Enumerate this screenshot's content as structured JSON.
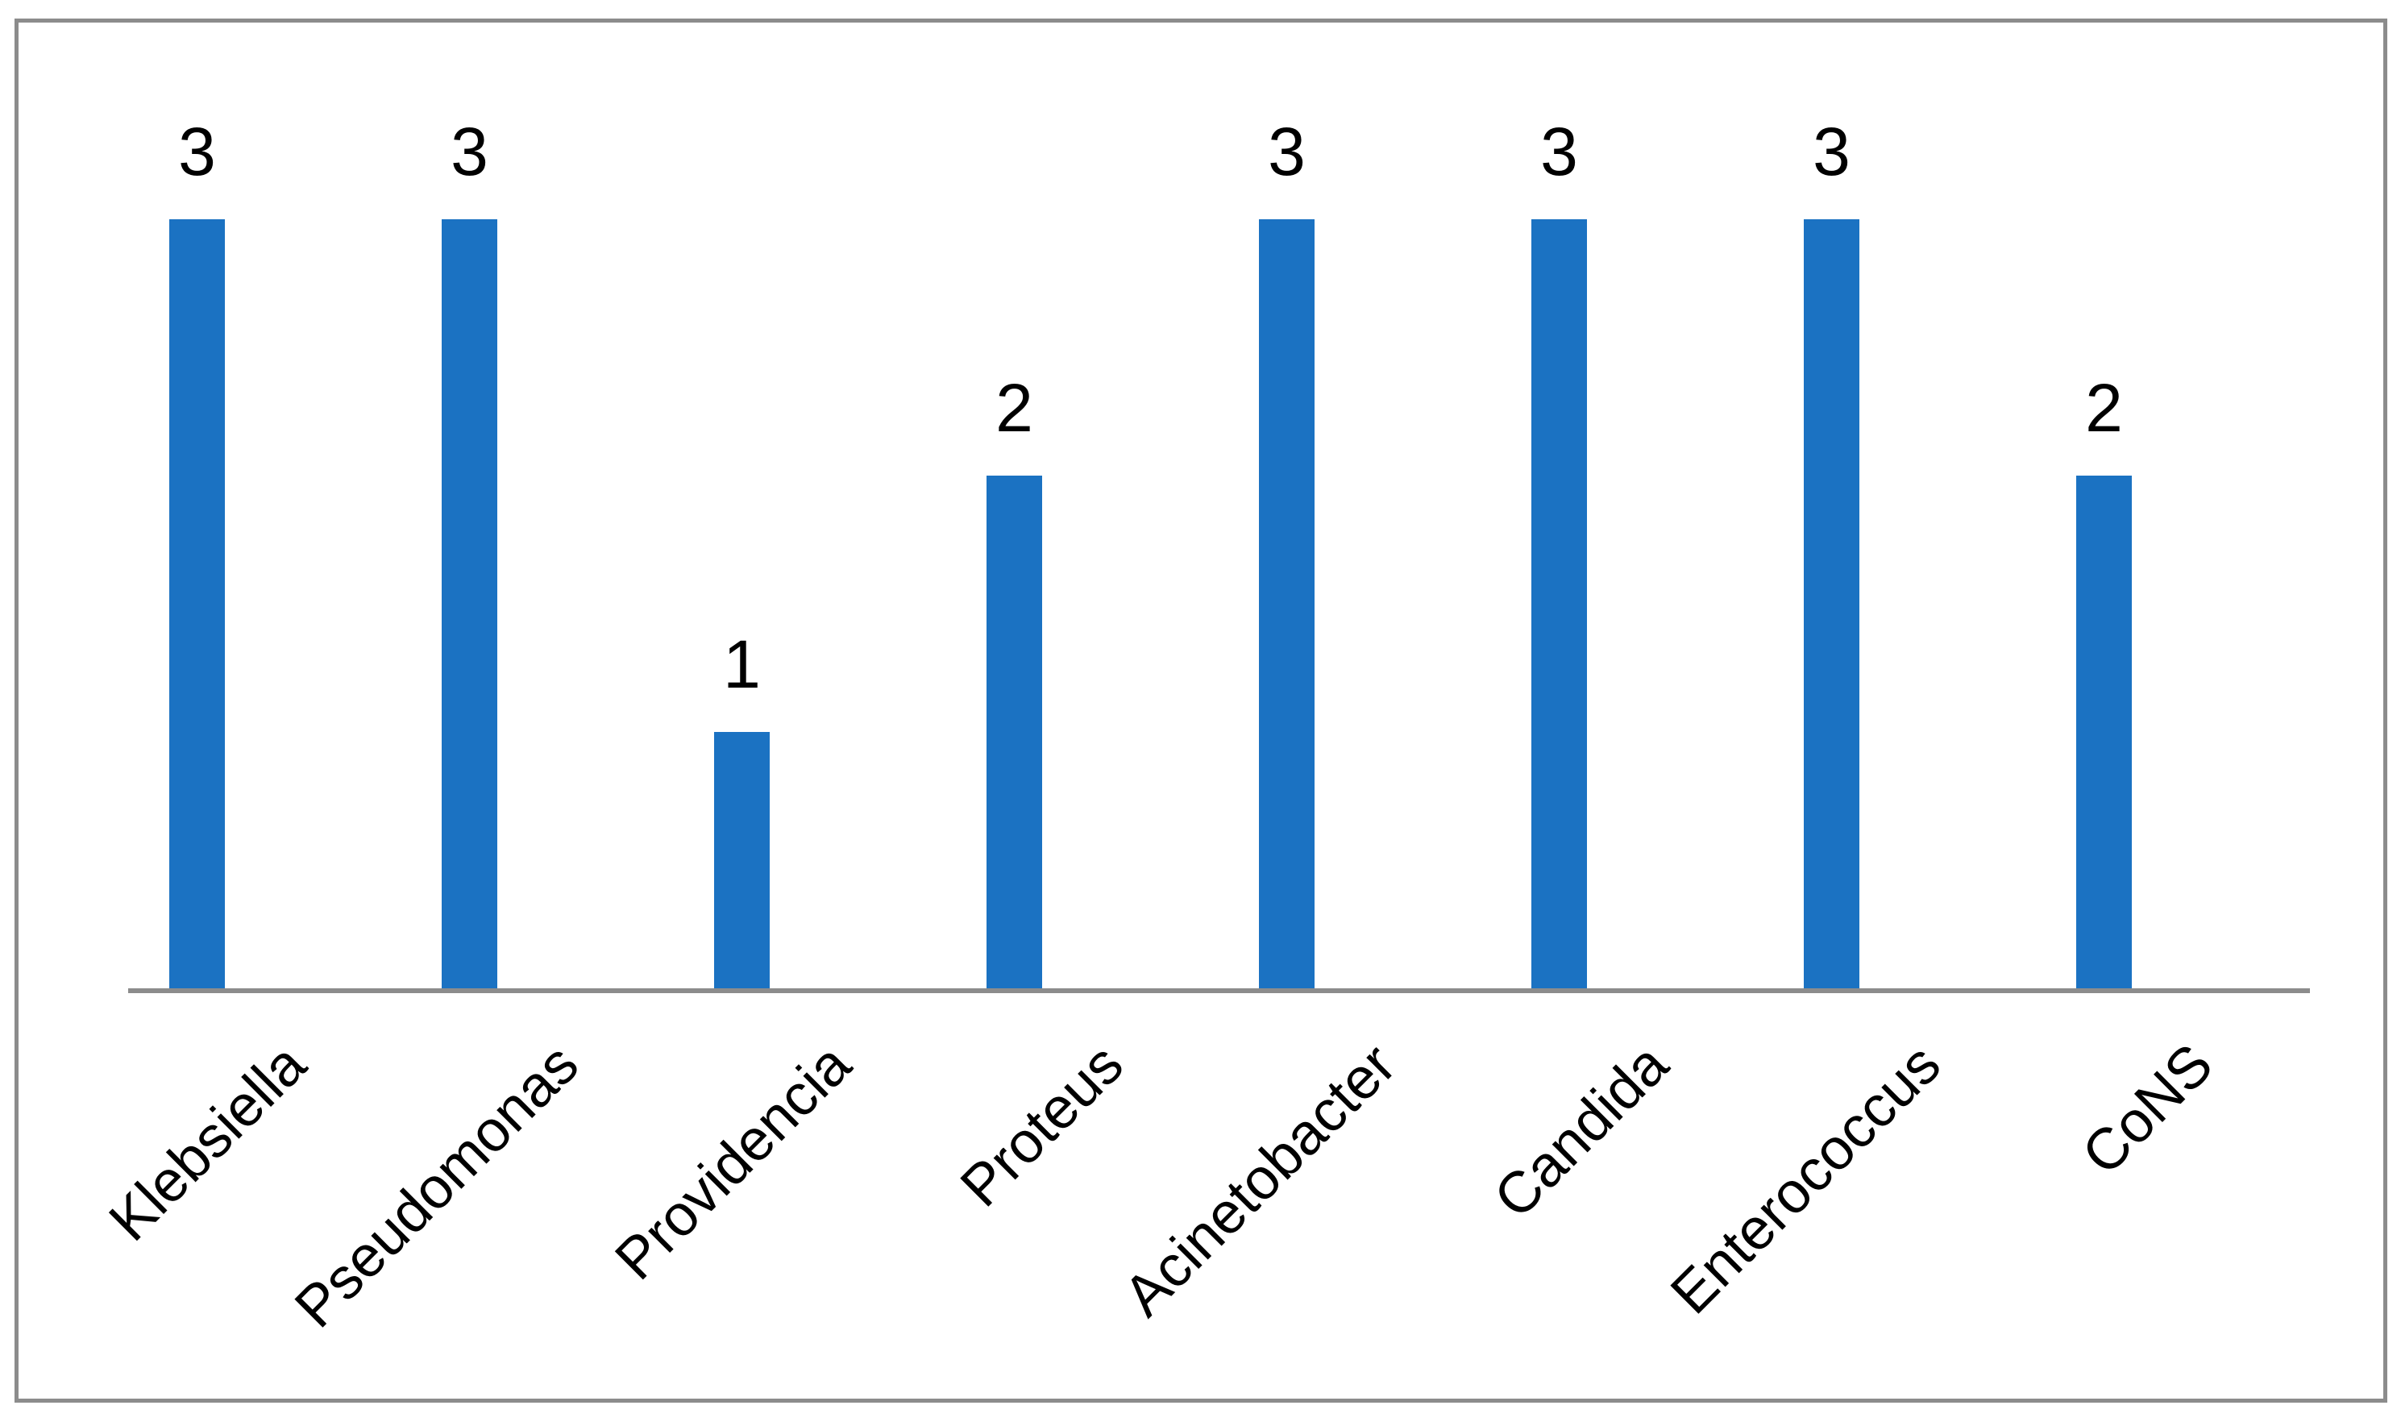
{
  "chart_data": {
    "type": "bar",
    "title": "",
    "xlabel": "",
    "ylabel": "",
    "categories": [
      "Klebsiella",
      "Pseudomonas",
      "Providencia",
      "Proteus",
      "Acinetobacter",
      "Candida",
      "Enterococcus",
      "CoNS"
    ],
    "values": [
      3,
      3,
      1,
      2,
      3,
      3,
      3,
      2
    ],
    "data_labels": [
      "3",
      "3",
      "1",
      "2",
      "3",
      "3",
      "3",
      "2"
    ],
    "ylim": [
      0,
      3
    ],
    "grid": false,
    "legend": false,
    "y_axis_visible": false,
    "x_tick_rotation_deg": 45,
    "colors": {
      "bar": "#1B72C2",
      "axis": "#8C8C8C",
      "frame_border": "#8C8C8C",
      "text": "#000000",
      "background": "#FFFFFF"
    }
  }
}
